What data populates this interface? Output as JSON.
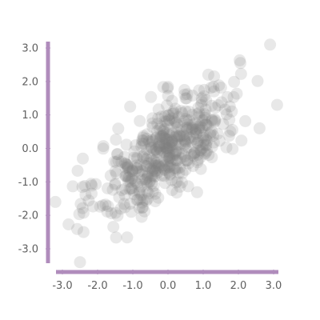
{
  "chart_data": {
    "type": "scatter",
    "title": "",
    "xlabel": "",
    "ylabel": "",
    "xlim": [
      -3.3,
      3.2
    ],
    "ylim": [
      -3.6,
      3.2
    ],
    "grid": false,
    "legend": "none",
    "x_ticks": [
      "-3.0",
      "-2.0",
      "-1.0",
      "0.0",
      "1.0",
      "2.0",
      "3.0"
    ],
    "y_ticks": [
      "3.0",
      "2.0",
      "1.0",
      "0.0",
      "-1.0",
      "-2.0",
      "-3.0"
    ],
    "marker_color": "#7f7f7f",
    "axis_color": "#b08cbc",
    "points_count": 500,
    "correlation": 0.7,
    "x_mean": 0.0,
    "y_mean": 0.0,
    "x_sd": 1.0,
    "y_sd": 1.0,
    "outliers": [
      {
        "x": 2.9,
        "y": 3.1
      },
      {
        "x": 3.1,
        "y": 1.3
      },
      {
        "x": -2.5,
        "y": -3.4
      },
      {
        "x": -3.2,
        "y": -1.6
      },
      {
        "x": -2.4,
        "y": -2.5
      },
      {
        "x": 2.6,
        "y": 0.6
      }
    ]
  }
}
